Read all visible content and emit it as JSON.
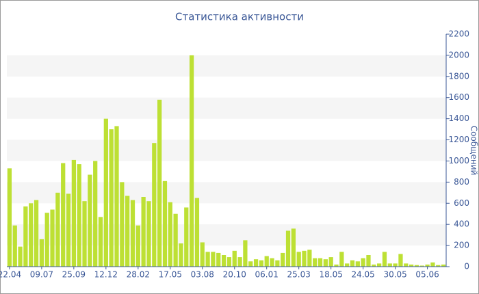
{
  "chart_data": {
    "type": "bar",
    "title": "Статистика активности",
    "y_axis_label": "Сообщений",
    "categories": [
      "22.04",
      null,
      null,
      null,
      null,
      null,
      "09.07",
      null,
      null,
      null,
      null,
      null,
      "25.09",
      null,
      null,
      null,
      null,
      null,
      "12.12",
      null,
      null,
      null,
      null,
      null,
      "28.02",
      null,
      null,
      null,
      null,
      null,
      "17.05",
      null,
      null,
      null,
      null,
      null,
      "03.08",
      null,
      null,
      null,
      null,
      null,
      "20.10",
      null,
      null,
      null,
      null,
      null,
      "06.01",
      null,
      null,
      null,
      null,
      null,
      "25.03",
      null,
      null,
      null,
      null,
      null,
      "18.05",
      null,
      null,
      null,
      null,
      null,
      "24.05",
      null,
      null,
      null,
      null,
      null,
      "30.05",
      null,
      null,
      null,
      null,
      null,
      "05.06",
      null,
      null,
      null
    ],
    "values": [
      930,
      390,
      190,
      570,
      600,
      630,
      260,
      510,
      540,
      700,
      980,
      690,
      1010,
      970,
      620,
      870,
      1000,
      470,
      1400,
      1300,
      1330,
      800,
      670,
      630,
      390,
      660,
      620,
      1170,
      1580,
      810,
      610,
      500,
      220,
      560,
      2000,
      650,
      230,
      140,
      140,
      130,
      110,
      90,
      150,
      90,
      250,
      50,
      70,
      60,
      100,
      80,
      60,
      130,
      340,
      360,
      140,
      150,
      160,
      80,
      80,
      70,
      90,
      20,
      140,
      30,
      60,
      50,
      80,
      110,
      20,
      30,
      140,
      30,
      30,
      120,
      30,
      20,
      15,
      10,
      20,
      40,
      15,
      20
    ],
    "color": "#bde034",
    "ylim": [
      0,
      2200
    ],
    "yticks": [
      0,
      200,
      400,
      600,
      800,
      1000,
      1200,
      1400,
      1600,
      1800,
      2000,
      2200
    ],
    "grid": "bands"
  }
}
